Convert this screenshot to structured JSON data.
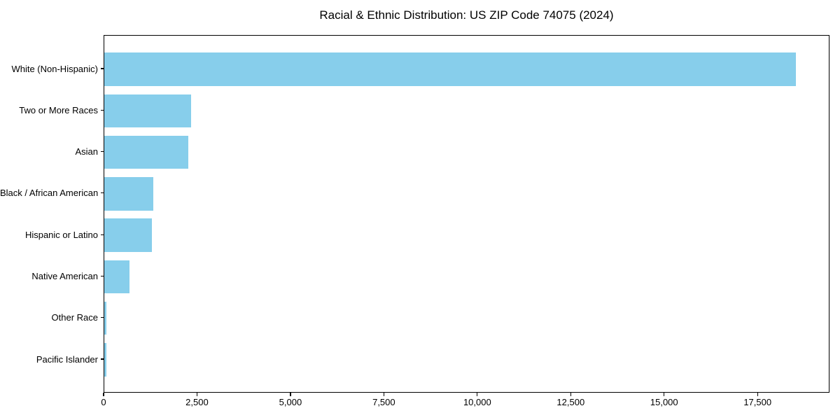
{
  "figure": {
    "background": "#ffffff"
  },
  "chart_data": {
    "type": "bar",
    "orientation": "horizontal",
    "title": "Racial & Ethnic Distribution: US ZIP Code 74075 (2024)",
    "categories": [
      "White (Non-Hispanic)",
      "Two or More Races",
      "Asian",
      "Black / African American",
      "Hispanic or Latino",
      "Native American",
      "Other Race",
      "Pacific Islander"
    ],
    "values": [
      18500,
      2320,
      2240,
      1310,
      1270,
      680,
      55,
      50
    ],
    "xlim": [
      0,
      19425
    ],
    "xticks": [
      0,
      2500,
      5000,
      7500,
      10000,
      12500,
      15000,
      17500
    ],
    "xtick_labels": [
      "0",
      "2,500",
      "5,000",
      "7,500",
      "10,000",
      "12,500",
      "15,000",
      "17,500"
    ],
    "bar_color": "#87CEEB",
    "axis_color": "#000000",
    "grid": false,
    "legend": null
  }
}
